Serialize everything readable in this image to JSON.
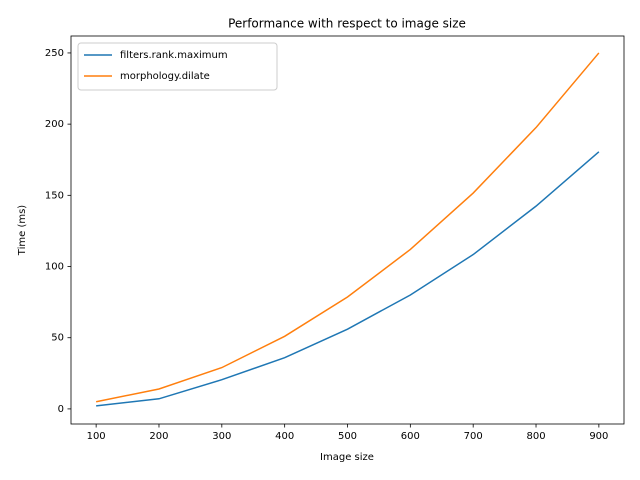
{
  "chart_data": {
    "type": "line",
    "title": "Performance with respect to image size",
    "x_label": "Image size",
    "y_label": "Time (ms)",
    "x": [
      100,
      200,
      300,
      400,
      500,
      600,
      700,
      800,
      900
    ],
    "series": [
      {
        "name": "filters.rank.maximum",
        "color": "#1f77b4",
        "values": [
          2.1,
          7.1,
          20.5,
          36,
          56,
          80,
          108.4,
          142.4,
          180.6
        ]
      },
      {
        "name": "morphology.dilate",
        "color": "#ff7f0e",
        "values": [
          5,
          14,
          29,
          51,
          78.6,
          112,
          151.6,
          197.6,
          250
        ]
      }
    ],
    "xlim": [
      60,
      940
    ],
    "xticks": [
      100,
      200,
      300,
      400,
      500,
      600,
      700,
      800,
      900
    ],
    "ylim": [
      -10.6,
      261.9
    ],
    "yticks": [
      0,
      50,
      100,
      150,
      200,
      250
    ],
    "grid": false,
    "legend": "upper left"
  }
}
